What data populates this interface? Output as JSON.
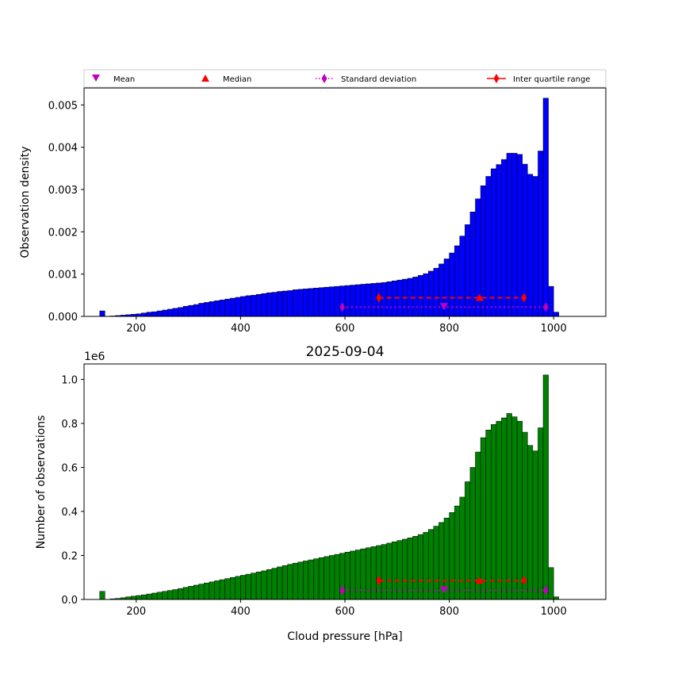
{
  "figure": {
    "title": "2025-09-04",
    "background": "#ffffff"
  },
  "legend": {
    "entries": [
      {
        "label": "Mean",
        "color": "#bf00bf",
        "marker": "triangle-down"
      },
      {
        "label": "Median",
        "color": "#ff0000",
        "marker": "triangle-up"
      },
      {
        "label": "Standard deviation",
        "color": "#bf00bf",
        "marker": "thin-diamond",
        "linestyle": "dotted"
      },
      {
        "label": "Inter quartile range",
        "color": "#ff0000",
        "marker": "thin-diamond",
        "linestyle": "solid"
      }
    ]
  },
  "chart_data": [
    {
      "type": "bar",
      "panel": "top",
      "bar_color": "#0000ff",
      "xlabel": "",
      "ylabel": "Observation density",
      "xlim": [
        100,
        1100
      ],
      "ylim": [
        0,
        0.0054
      ],
      "xticks": [
        200,
        400,
        600,
        800,
        1000
      ],
      "xtick_labels": [
        "200",
        "400",
        "600",
        "800",
        "1000"
      ],
      "yticks": [
        0,
        0.001,
        0.002,
        0.003,
        0.004,
        0.005
      ],
      "ytick_labels": [
        "0.000",
        "0.001",
        "0.002",
        "0.003",
        "0.004",
        "0.005"
      ],
      "bin_start": 130,
      "bin_width": 10,
      "values": [
        0.00013,
        0.0,
        1e-05,
        2e-05,
        3e-05,
        4e-05,
        5e-05,
        6e-05,
        8e-05,
        0.0001,
        0.00011,
        0.00013,
        0.00015,
        0.00017,
        0.00019,
        0.00021,
        0.00024,
        0.00026,
        0.00028,
        0.00031,
        0.00033,
        0.00035,
        0.00037,
        0.00039,
        0.00041,
        0.00043,
        0.00045,
        0.00047,
        0.00049,
        0.0005,
        0.00052,
        0.00054,
        0.00056,
        0.00057,
        0.00059,
        0.0006,
        0.00061,
        0.00063,
        0.00064,
        0.00065,
        0.00066,
        0.00067,
        0.00068,
        0.00069,
        0.0007,
        0.00071,
        0.00072,
        0.00073,
        0.00074,
        0.00075,
        0.00076,
        0.00077,
        0.00078,
        0.00079,
        0.0008,
        0.00082,
        0.00084,
        0.00086,
        0.00088,
        0.0009,
        0.00093,
        0.00097,
        0.00101,
        0.00107,
        0.00114,
        0.00124,
        0.00136,
        0.0015,
        0.00167,
        0.0019,
        0.00217,
        0.00247,
        0.00278,
        0.00309,
        0.00331,
        0.00349,
        0.00359,
        0.00371,
        0.00386,
        0.00386,
        0.00383,
        0.0036,
        0.00336,
        0.00331,
        0.00391,
        0.00516,
        0.00071,
        0.0001
      ],
      "stats": {
        "mean": 790,
        "median": 858,
        "std_range": [
          595,
          985
        ],
        "iqr_range": [
          665,
          943
        ],
        "std_y": 0.00022,
        "mean_y": 0.00022,
        "iqr_y": 0.00044,
        "median_y": 0.00044
      }
    },
    {
      "type": "bar",
      "panel": "bottom",
      "bar_color": "#008000",
      "xlabel": "Cloud pressure [hPa]",
      "ylabel": "Number of observations",
      "offset_text": "1e6",
      "xlim": [
        100,
        1100
      ],
      "ylim": [
        0,
        1.07
      ],
      "xticks": [
        200,
        400,
        600,
        800,
        1000
      ],
      "xtick_labels": [
        "200",
        "400",
        "600",
        "800",
        "1000"
      ],
      "yticks": [
        0,
        0.2,
        0.4,
        0.6,
        0.8,
        1.0
      ],
      "ytick_labels": [
        "0.0",
        "0.2",
        "0.4",
        "0.6",
        "0.8",
        "1.0"
      ],
      "bin_start": 130,
      "bin_width": 10,
      "values": [
        0.037,
        0.0,
        0.003,
        0.005,
        0.008,
        0.012,
        0.015,
        0.018,
        0.021,
        0.025,
        0.029,
        0.033,
        0.037,
        0.041,
        0.045,
        0.05,
        0.055,
        0.06,
        0.065,
        0.07,
        0.075,
        0.08,
        0.085,
        0.09,
        0.095,
        0.1,
        0.105,
        0.11,
        0.115,
        0.12,
        0.125,
        0.13,
        0.136,
        0.142,
        0.148,
        0.154,
        0.16,
        0.165,
        0.17,
        0.175,
        0.18,
        0.185,
        0.19,
        0.195,
        0.2,
        0.205,
        0.21,
        0.215,
        0.22,
        0.225,
        0.23,
        0.235,
        0.24,
        0.245,
        0.25,
        0.256,
        0.262,
        0.268,
        0.274,
        0.28,
        0.287,
        0.295,
        0.305,
        0.318,
        0.333,
        0.35,
        0.37,
        0.395,
        0.425,
        0.465,
        0.535,
        0.6,
        0.67,
        0.735,
        0.77,
        0.795,
        0.81,
        0.825,
        0.845,
        0.83,
        0.81,
        0.76,
        0.7,
        0.675,
        0.78,
        1.02,
        0.145,
        0.012
      ],
      "stats": {
        "mean": 790,
        "median": 858,
        "std_range": [
          595,
          985
        ],
        "iqr_range": [
          665,
          943
        ],
        "std_y": 0.042,
        "mean_y": 0.042,
        "iqr_y": 0.086,
        "median_y": 0.086
      }
    }
  ]
}
